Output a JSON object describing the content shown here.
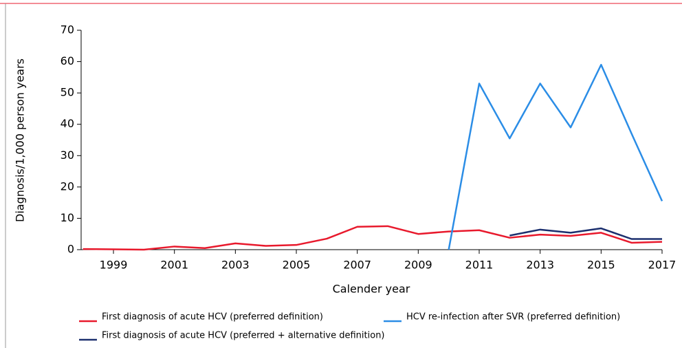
{
  "chart_data": {
    "type": "line",
    "ylabel": "Diagnosis/1,000 person years",
    "xlabel": "Calender year",
    "x": [
      1998,
      1999,
      2000,
      2001,
      2002,
      2003,
      2004,
      2005,
      2006,
      2007,
      2008,
      2009,
      2010,
      2011,
      2012,
      2013,
      2014,
      2015,
      2016,
      2017
    ],
    "series": [
      {
        "name": "First diagnosis of acute HCV (preferred definition)",
        "color": "#e8192c",
        "values": [
          0.2,
          0.1,
          0.0,
          1.0,
          0.5,
          2.0,
          1.2,
          1.5,
          3.5,
          7.3,
          7.5,
          5.0,
          5.8,
          6.2,
          3.8,
          4.8,
          4.4,
          5.4,
          2.2,
          2.5
        ]
      },
      {
        "name": "HCV re-infection after SVR (preferred definition)",
        "color": "#2b8de6",
        "values": [
          null,
          null,
          null,
          null,
          null,
          null,
          null,
          null,
          null,
          null,
          null,
          null,
          0,
          53,
          35.5,
          53,
          39,
          59,
          37,
          15.5
        ]
      },
      {
        "name": "First diagnosis of acute HCV (preferred + alternative definition)",
        "color": "#1b2f6e",
        "values": [
          null,
          null,
          null,
          null,
          null,
          null,
          null,
          null,
          null,
          null,
          null,
          null,
          null,
          null,
          4.5,
          6.4,
          5.4,
          6.8,
          3.4,
          3.4
        ]
      }
    ],
    "xlim": [
      1998,
      2017
    ],
    "xticks": [
      1999,
      2001,
      2003,
      2005,
      2007,
      2009,
      2011,
      2013,
      2015,
      2017
    ],
    "ylim": [
      0,
      70
    ],
    "yticks": [
      0,
      10,
      20,
      30,
      40,
      50,
      60,
      70
    ],
    "legend": "bottom"
  }
}
